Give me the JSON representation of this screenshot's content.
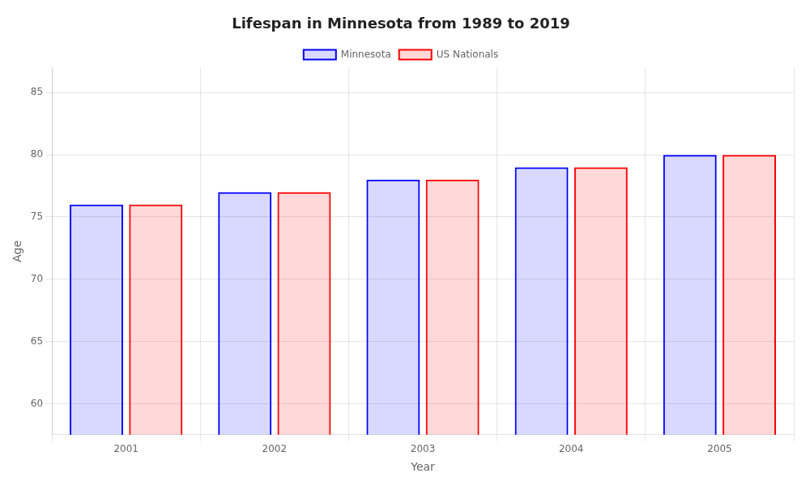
{
  "chart_data": {
    "type": "bar",
    "title": "Lifespan in Minnesota from 1989 to 2019",
    "xlabel": "Year",
    "ylabel": "Age",
    "categories": [
      "2001",
      "2002",
      "2003",
      "2004",
      "2005"
    ],
    "series": [
      {
        "name": "Minnesota",
        "color": "#0000ff",
        "values": [
          76,
          77,
          78,
          79,
          80
        ]
      },
      {
        "name": "US Nationals",
        "color": "#ff0000",
        "values": [
          76,
          77,
          78,
          79,
          80
        ]
      }
    ],
    "ylim": [
      57.5,
      87
    ],
    "yticks": [
      60,
      65,
      70,
      75,
      80,
      85
    ],
    "grid": true,
    "legend": "top"
  }
}
